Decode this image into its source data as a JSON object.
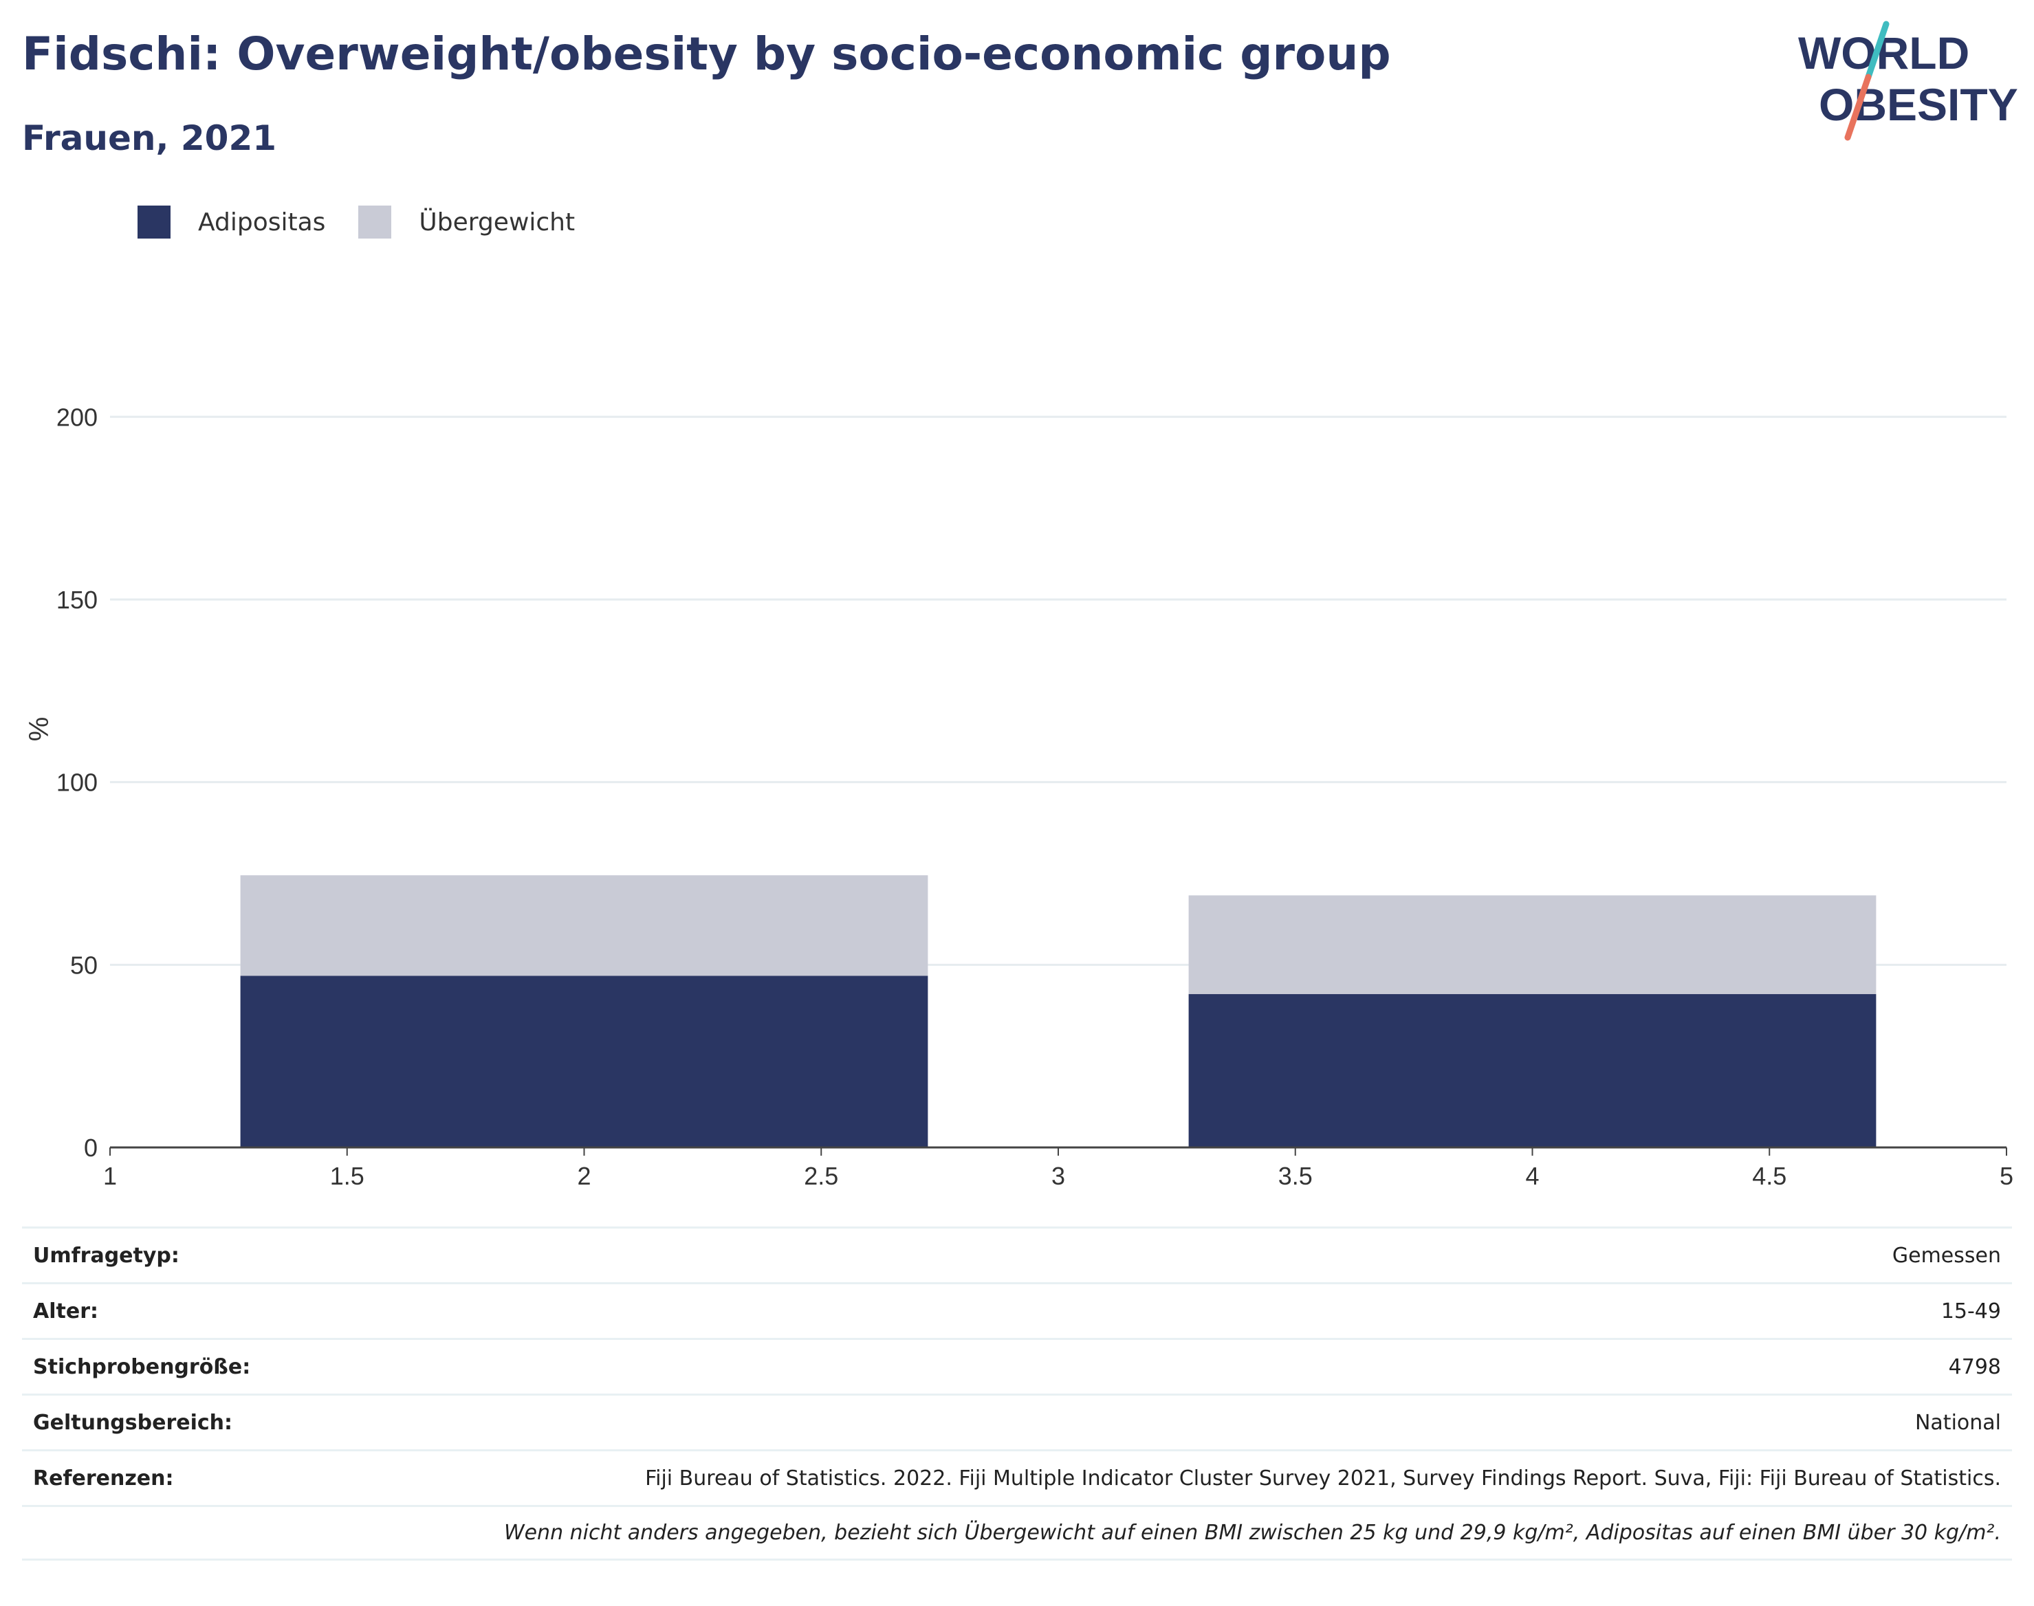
{
  "title": "Fidschi: Overweight/obesity by socio-economic group",
  "subtitle": "Frauen, 2021",
  "logo": {
    "line1": "WORLD",
    "line2": "OBESITY",
    "colors": [
      "#2a3663",
      "#3fbcc0",
      "#e8735d"
    ]
  },
  "legend": [
    {
      "label": "Adipositas",
      "color": "#2a3663"
    },
    {
      "label": "Übergewicht",
      "color": "#c9cbd6"
    }
  ],
  "chart_data": {
    "type": "bar",
    "stacked": true,
    "x_positions": [
      2,
      4
    ],
    "bar_width": 1.45,
    "series": [
      {
        "name": "Adipositas",
        "color": "#2a3663",
        "values": [
          47,
          42
        ]
      },
      {
        "name": "Übergewicht",
        "color": "#c9cbd6",
        "values": [
          27.5,
          27
        ]
      }
    ],
    "xlim": [
      1,
      5
    ],
    "ylim": [
      0,
      220
    ],
    "xticks": [
      "1",
      "1.5",
      "2",
      "2.5",
      "3",
      "3.5",
      "4",
      "4.5",
      "5"
    ],
    "xtick_values": [
      1,
      1.5,
      2,
      2.5,
      3,
      3.5,
      4,
      4.5,
      5
    ],
    "yticks": [
      "0",
      "50",
      "100",
      "150",
      "200"
    ],
    "ytick_values": [
      0,
      50,
      100,
      150,
      200
    ],
    "ylabel": "%",
    "xlabel": "",
    "grid": true
  },
  "info": {
    "rows": [
      {
        "label": "Umfragetyp:",
        "value": "Gemessen"
      },
      {
        "label": "Alter:",
        "value": "15-49"
      },
      {
        "label": "Stichprobengröße:",
        "value": "4798"
      },
      {
        "label": "Geltungsbereich:",
        "value": "National"
      },
      {
        "label": "Referenzen:",
        "value": "Fiji Bureau of Statistics. 2022. Fiji Multiple Indicator Cluster Survey 2021, Survey Findings Report. Suva, Fiji: Fiji Bureau of Statistics."
      }
    ],
    "note": "Wenn nicht anders angegeben, bezieht sich Übergewicht auf einen BMI zwischen 25 kg und 29,9 kg/m², Adipositas auf einen BMI über 30 kg/m²."
  }
}
